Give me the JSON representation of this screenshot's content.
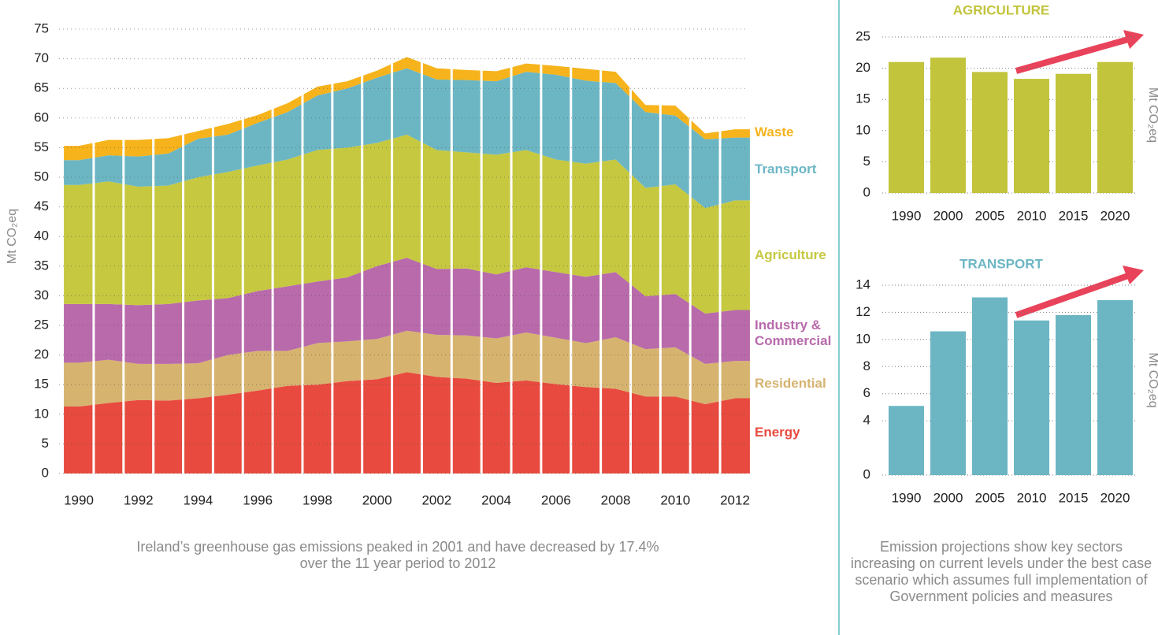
{
  "chart_data": [
    {
      "type": "area",
      "ylabel": "Mt CO₂eq",
      "caption": "Ireland’s greenhouse gas emissions peaked in 2001 and have decreased by 17.4% over the 11 year period to 2012",
      "x": [
        1990,
        1991,
        1992,
        1993,
        1994,
        1995,
        1996,
        1997,
        1998,
        1999,
        2000,
        2001,
        2002,
        2003,
        2004,
        2005,
        2006,
        2007,
        2008,
        2009,
        2010,
        2011,
        2012
      ],
      "xlim": [
        1990,
        2012
      ],
      "xticks": [
        1990,
        1992,
        1994,
        1996,
        1998,
        2000,
        2002,
        2004,
        2006,
        2008,
        2010,
        2012
      ],
      "ylim": [
        0,
        75
      ],
      "yticks": [
        0,
        5,
        10,
        15,
        20,
        25,
        30,
        35,
        40,
        45,
        50,
        55,
        60,
        65,
        70,
        75
      ],
      "grid": true,
      "series": [
        {
          "name": "Energy",
          "color": "#e84a3f",
          "values": [
            11.3,
            11.9,
            12.4,
            12.3,
            12.7,
            13.3,
            14.0,
            14.8,
            15.0,
            15.6,
            15.9,
            17.1,
            16.3,
            16.0,
            15.3,
            15.7,
            15.1,
            14.6,
            14.3,
            13.0,
            13.0,
            11.7,
            12.7
          ]
        },
        {
          "name": "Residential",
          "color": "#d6b36f",
          "values": [
            7.4,
            7.3,
            6.1,
            6.2,
            5.9,
            6.7,
            6.7,
            5.9,
            7.0,
            6.7,
            6.8,
            7.0,
            7.1,
            7.3,
            7.5,
            8.1,
            7.8,
            7.4,
            8.7,
            8.0,
            8.3,
            6.8,
            6.3
          ]
        },
        {
          "name": "Industry & Commercial",
          "color": "#b86aab",
          "values": [
            9.9,
            9.4,
            9.9,
            10.1,
            10.6,
            9.6,
            10.1,
            10.9,
            10.4,
            10.8,
            12.3,
            12.3,
            11.1,
            11.3,
            10.8,
            11.0,
            11.1,
            11.2,
            11.0,
            8.9,
            9.0,
            8.5,
            8.6
          ]
        },
        {
          "name": "Agriculture",
          "color": "#c6c840",
          "values": [
            20.1,
            20.7,
            20.0,
            20.0,
            20.8,
            21.3,
            21.2,
            21.4,
            22.2,
            21.9,
            20.8,
            20.8,
            20.1,
            19.6,
            20.2,
            19.8,
            19.0,
            19.1,
            19.0,
            18.3,
            18.5,
            17.8,
            18.5
          ]
        },
        {
          "name": "Transport",
          "color": "#6cb6c4",
          "values": [
            4.2,
            4.4,
            5.1,
            5.4,
            6.5,
            6.3,
            7.2,
            8.0,
            9.2,
            10.0,
            11.0,
            11.2,
            11.9,
            12.2,
            12.4,
            13.2,
            14.3,
            14.0,
            12.9,
            12.8,
            11.6,
            11.6,
            10.6
          ]
        },
        {
          "name": "Waste",
          "color": "#f6b31b",
          "values": [
            2.4,
            2.6,
            2.8,
            2.6,
            1.3,
            1.8,
            1.3,
            1.5,
            1.5,
            1.2,
            1.2,
            1.9,
            1.9,
            1.7,
            1.7,
            1.4,
            1.5,
            2.0,
            1.9,
            1.2,
            1.7,
            1.0,
            1.4
          ]
        }
      ]
    },
    {
      "type": "bar",
      "title": "AGRICULTURE",
      "ylabel": "Mt CO₂eq",
      "categories": [
        "1990",
        "2000",
        "2005",
        "2010",
        "2015",
        "2020"
      ],
      "values": [
        21.0,
        21.7,
        19.4,
        18.3,
        19.1,
        21.0
      ],
      "color": "#c2c43c",
      "ylim": [
        0,
        25
      ],
      "yticks": [
        0,
        5,
        10,
        15,
        20,
        25
      ],
      "grid": true
    },
    {
      "type": "bar",
      "title": "TRANSPORT",
      "ylabel": "Mt CO₂eq",
      "caption": "Emission projections show key sectors increasing on current levels under the best case scenario which assumes full implementation of Government policies and measures",
      "categories": [
        "1990",
        "2000",
        "2005",
        "2010",
        "2015",
        "2020"
      ],
      "values": [
        5.1,
        10.6,
        13.1,
        11.4,
        11.8,
        12.9
      ],
      "color": "#6cb6c4",
      "ylim": [
        0,
        14
      ],
      "yticks": [
        0,
        4,
        6,
        8,
        10,
        12,
        14
      ],
      "grid": true
    }
  ]
}
